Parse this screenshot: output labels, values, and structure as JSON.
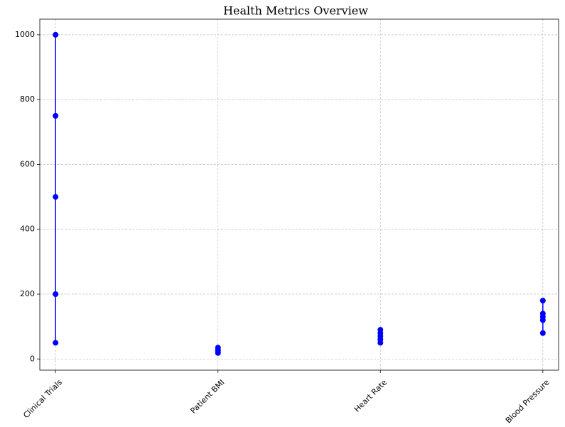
{
  "chart_data": {
    "type": "dot",
    "title": "Health Metrics Overview",
    "categories": [
      "Clinical Trials",
      "Patient BMI",
      "Heart Rate",
      "Blood Pressure"
    ],
    "values": [
      [
        50,
        200,
        500,
        750,
        1000
      ],
      [
        18.5,
        22,
        25,
        30,
        35
      ],
      [
        50,
        60,
        70,
        80,
        90
      ],
      [
        80,
        120,
        130,
        140,
        180
      ]
    ],
    "color": "#0000ff",
    "ylim": [
      -34.5,
      1048
    ],
    "yticks": [
      0,
      200,
      400,
      600,
      800,
      1000
    ],
    "grid": true
  }
}
